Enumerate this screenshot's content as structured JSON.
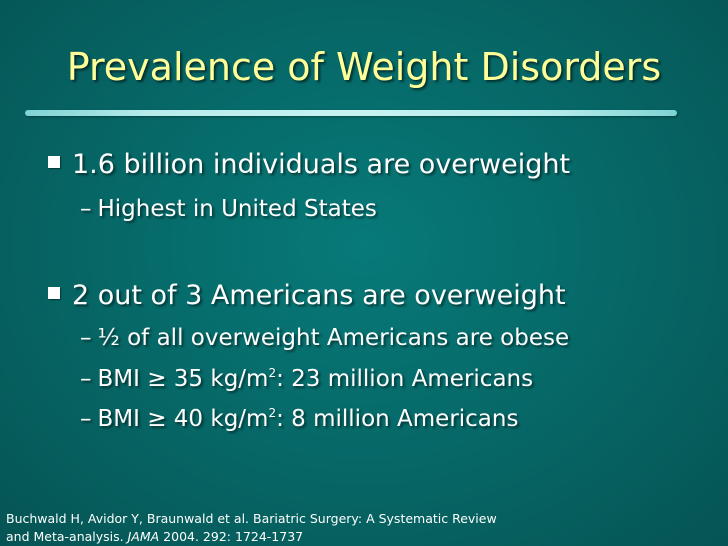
{
  "slide": {
    "title": "Prevalence of Weight Disorders",
    "bullets": [
      {
        "text": "1.6 billion individuals are overweight",
        "subs": [
          {
            "dash": "–",
            "text": "Highest in United States"
          }
        ]
      },
      {
        "text": "2 out of 3 Americans are overweight",
        "subs": [
          {
            "dash": "–",
            "text": "½ of all overweight Americans are obese"
          },
          {
            "dash": "–",
            "pre": "BMI ≥ 35 kg/m",
            "sup": "2",
            "post": ": 23 million Americans"
          },
          {
            "dash": "–",
            "pre": "BMI ≥ 40 kg/m",
            "sup": "2",
            "post": ": 8 million Americans"
          }
        ]
      }
    ],
    "citation": {
      "line1": "Buchwald H, Avidor Y, Braunwald et al. Bariatric Surgery: A Systematic Review",
      "line2_pre": "and Meta-analysis. ",
      "journal": "JAMA",
      "line2_post": " 2004. 292: 1724-1737"
    }
  },
  "colors": {
    "background": "#066665",
    "title": "#ffff99",
    "text": "#ffffff",
    "rule": "#c7f2f2"
  }
}
